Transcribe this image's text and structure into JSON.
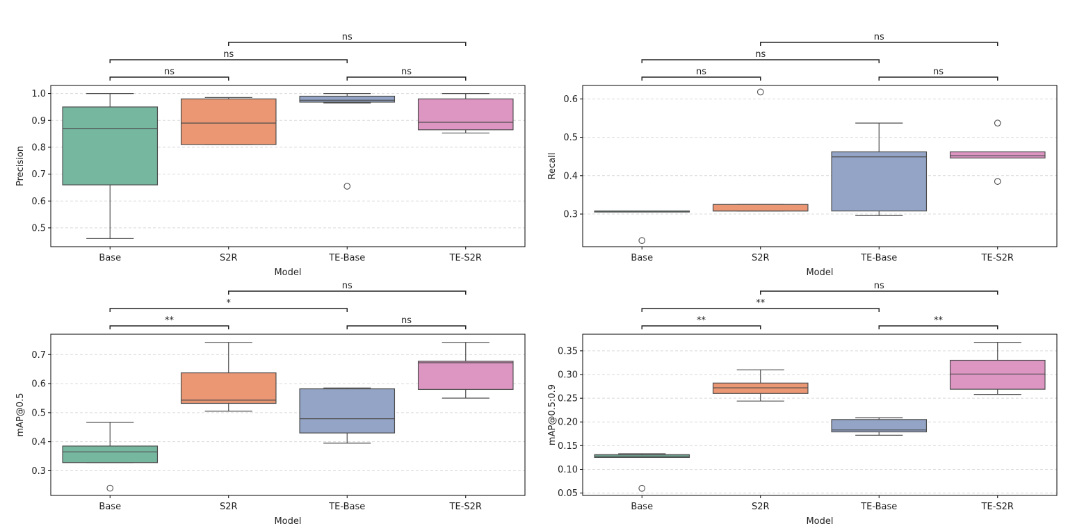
{
  "chart_data": [
    {
      "type": "box",
      "id": "precision",
      "title": "",
      "xlabel": "Model",
      "ylabel": "Precision",
      "categories": [
        "Base",
        "S2R",
        "TE-Base",
        "TE-S2R"
      ],
      "colors": [
        "#76b7a0",
        "#eb9773",
        "#93a4c6",
        "#dd95c2"
      ],
      "ylim": [
        0.43,
        1.03
      ],
      "yticks": [
        "0.5",
        "0.6",
        "0.7",
        "0.8",
        "0.9",
        "1.0"
      ],
      "boxes": [
        {
          "whisker_low": 0.46,
          "q1": 0.66,
          "median": 0.87,
          "q3": 0.95,
          "whisker_high": 1.0,
          "outliers": []
        },
        {
          "whisker_low": 0.81,
          "q1": 0.81,
          "median": 0.89,
          "q3": 0.98,
          "whisker_high": 0.985,
          "outliers": []
        },
        {
          "whisker_low": 0.965,
          "q1": 0.968,
          "median": 0.975,
          "q3": 0.99,
          "whisker_high": 1.0,
          "outliers": [
            0.655
          ]
        },
        {
          "whisker_low": 0.853,
          "q1": 0.865,
          "median": 0.893,
          "q3": 0.98,
          "whisker_high": 1.0,
          "outliers": []
        }
      ],
      "significance": [
        {
          "from": 0,
          "to": 1,
          "label": "ns",
          "level": 0
        },
        {
          "from": 2,
          "to": 3,
          "label": "ns",
          "level": 0
        },
        {
          "from": 0,
          "to": 2,
          "label": "ns",
          "level": 1
        },
        {
          "from": 1,
          "to": 3,
          "label": "ns",
          "level": 2
        }
      ]
    },
    {
      "type": "box",
      "id": "recall",
      "title": "",
      "xlabel": "Model",
      "ylabel": "Recall",
      "categories": [
        "Base",
        "S2R",
        "TE-Base",
        "TE-S2R"
      ],
      "colors": [
        "#76b7a0",
        "#eb9773",
        "#93a4c6",
        "#dd95c2"
      ],
      "ylim": [
        0.215,
        0.635
      ],
      "yticks": [
        "0.3",
        "0.4",
        "0.5",
        "0.6"
      ],
      "boxes": [
        {
          "whisker_low": 0.308,
          "q1": 0.308,
          "median": 0.308,
          "q3": 0.308,
          "whisker_high": 0.308,
          "outliers": [
            0.231
          ]
        },
        {
          "whisker_low": 0.308,
          "q1": 0.308,
          "median": 0.308,
          "q3": 0.325,
          "whisker_high": 0.325,
          "outliers": [
            0.618
          ]
        },
        {
          "whisker_low": 0.296,
          "q1": 0.308,
          "median": 0.449,
          "q3": 0.462,
          "whisker_high": 0.537,
          "outliers": []
        },
        {
          "whisker_low": 0.446,
          "q1": 0.446,
          "median": 0.452,
          "q3": 0.462,
          "whisker_high": 0.462,
          "outliers": [
            0.537,
            0.385
          ]
        }
      ],
      "significance": [
        {
          "from": 0,
          "to": 1,
          "label": "ns",
          "level": 0
        },
        {
          "from": 2,
          "to": 3,
          "label": "ns",
          "level": 0
        },
        {
          "from": 0,
          "to": 2,
          "label": "ns",
          "level": 1
        },
        {
          "from": 1,
          "to": 3,
          "label": "ns",
          "level": 2
        }
      ]
    },
    {
      "type": "box",
      "id": "map50",
      "title": "",
      "xlabel": "Model",
      "ylabel": "mAP@0.5",
      "categories": [
        "Base",
        "S2R",
        "TE-Base",
        "TE-S2R"
      ],
      "colors": [
        "#76b7a0",
        "#eb9773",
        "#93a4c6",
        "#dd95c2"
      ],
      "ylim": [
        0.215,
        0.77
      ],
      "yticks": [
        "0.3",
        "0.4",
        "0.5",
        "0.6",
        "0.7"
      ],
      "boxes": [
        {
          "whisker_low": 0.328,
          "q1": 0.328,
          "median": 0.365,
          "q3": 0.385,
          "whisker_high": 0.467,
          "outliers": [
            0.24
          ]
        },
        {
          "whisker_low": 0.505,
          "q1": 0.532,
          "median": 0.543,
          "q3": 0.637,
          "whisker_high": 0.742,
          "outliers": []
        },
        {
          "whisker_low": 0.395,
          "q1": 0.43,
          "median": 0.479,
          "q3": 0.582,
          "whisker_high": 0.585,
          "outliers": []
        },
        {
          "whisker_low": 0.55,
          "q1": 0.58,
          "median": 0.672,
          "q3": 0.677,
          "whisker_high": 0.742,
          "outliers": []
        }
      ],
      "significance": [
        {
          "from": 0,
          "to": 1,
          "label": "**",
          "level": 0
        },
        {
          "from": 2,
          "to": 3,
          "label": "ns",
          "level": 0
        },
        {
          "from": 0,
          "to": 2,
          "label": "*",
          "level": 1
        },
        {
          "from": 1,
          "to": 3,
          "label": "ns",
          "level": 2
        }
      ]
    },
    {
      "type": "box",
      "id": "map5095",
      "title": "",
      "xlabel": "Model",
      "ylabel": "mAP@0.5:0.9",
      "categories": [
        "Base",
        "S2R",
        "TE-Base",
        "TE-S2R"
      ],
      "colors": [
        "#76b7a0",
        "#eb9773",
        "#93a4c6",
        "#dd95c2"
      ],
      "ylim": [
        0.045,
        0.385
      ],
      "yticks": [
        "0.05",
        "0.10",
        "0.15",
        "0.20",
        "0.25",
        "0.30",
        "0.35"
      ],
      "boxes": [
        {
          "whisker_low": 0.125,
          "q1": 0.125,
          "median": 0.128,
          "q3": 0.131,
          "whisker_high": 0.133,
          "outliers": [
            0.06
          ]
        },
        {
          "whisker_low": 0.244,
          "q1": 0.26,
          "median": 0.272,
          "q3": 0.282,
          "whisker_high": 0.31,
          "outliers": []
        },
        {
          "whisker_low": 0.172,
          "q1": 0.179,
          "median": 0.183,
          "q3": 0.205,
          "whisker_high": 0.209,
          "outliers": []
        },
        {
          "whisker_low": 0.258,
          "q1": 0.269,
          "median": 0.301,
          "q3": 0.33,
          "whisker_high": 0.368,
          "outliers": []
        }
      ],
      "significance": [
        {
          "from": 0,
          "to": 1,
          "label": "**",
          "level": 0
        },
        {
          "from": 2,
          "to": 3,
          "label": "**",
          "level": 0
        },
        {
          "from": 0,
          "to": 2,
          "label": "**",
          "level": 1
        },
        {
          "from": 1,
          "to": 3,
          "label": "ns",
          "level": 2
        }
      ]
    }
  ]
}
